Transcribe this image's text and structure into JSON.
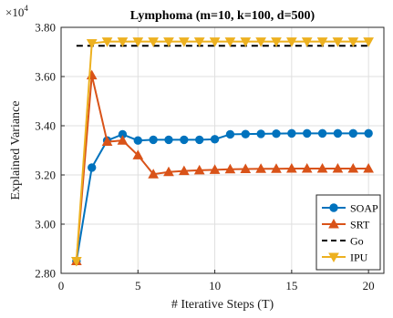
{
  "chart_data": {
    "type": "line",
    "title": "Lymphoma (m=10, k=100, d=500)",
    "xlabel": "# Iterative Steps (T)",
    "ylabel": "Explained Variance",
    "exponent_label": "×10",
    "exponent_power": "4",
    "xlim": [
      0,
      21
    ],
    "ylim": [
      2.8,
      3.8
    ],
    "xticks": [
      "0",
      "5",
      "10",
      "15",
      "20"
    ],
    "yticks": [
      "2.80",
      "3.00",
      "3.20",
      "3.40",
      "3.60",
      "3.80"
    ],
    "grid": true,
    "legend_position": "bottom-right",
    "x": [
      1,
      2,
      3,
      4,
      5,
      6,
      7,
      8,
      9,
      10,
      11,
      12,
      13,
      14,
      15,
      16,
      17,
      18,
      19,
      20
    ],
    "series": [
      {
        "name": "SOAP",
        "color": "#0072BD",
        "marker": "circle",
        "dashed": false,
        "values": [
          2.85,
          3.23,
          3.34,
          3.365,
          3.34,
          3.343,
          3.343,
          3.343,
          3.343,
          3.345,
          3.365,
          3.366,
          3.367,
          3.368,
          3.369,
          3.369,
          3.369,
          3.369,
          3.369,
          3.369
        ]
      },
      {
        "name": "SRT",
        "color": "#D95319",
        "marker": "triangle",
        "dashed": false,
        "values": [
          2.85,
          3.605,
          3.335,
          3.34,
          3.28,
          3.203,
          3.212,
          3.216,
          3.219,
          3.221,
          3.223,
          3.224,
          3.225,
          3.225,
          3.226,
          3.226,
          3.226,
          3.226,
          3.226,
          3.226
        ]
      },
      {
        "name": "Go",
        "color": "#000000",
        "marker": "none",
        "dashed": true,
        "values": [
          3.725,
          3.725,
          3.725,
          3.725,
          3.725,
          3.725,
          3.725,
          3.725,
          3.725,
          3.725,
          3.725,
          3.725,
          3.725,
          3.725,
          3.725,
          3.725,
          3.725,
          3.725,
          3.725,
          3.725
        ]
      },
      {
        "name": "IPU",
        "color": "#EDB120",
        "marker": "triangle-down",
        "dashed": false,
        "values": [
          2.85,
          3.735,
          3.742,
          3.742,
          3.742,
          3.742,
          3.742,
          3.742,
          3.742,
          3.742,
          3.742,
          3.742,
          3.742,
          3.742,
          3.742,
          3.742,
          3.742,
          3.742,
          3.742,
          3.742
        ]
      }
    ]
  }
}
